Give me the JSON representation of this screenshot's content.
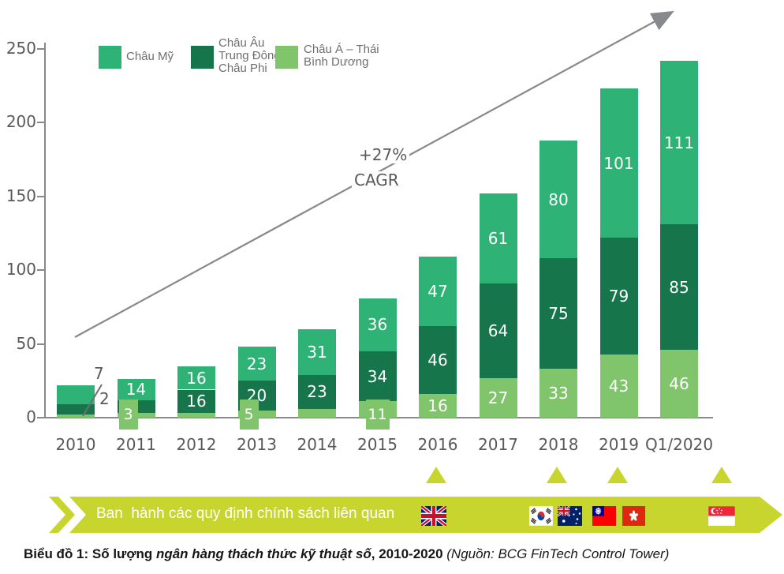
{
  "chart_data": {
    "type": "bar",
    "stacked": true,
    "title": "",
    "categories": [
      "2010",
      "2011",
      "2012",
      "2013",
      "2014",
      "2015",
      "2016",
      "2017",
      "2018",
      "2019",
      "Q1/2020"
    ],
    "series": [
      {
        "name": "Châu Mỹ",
        "color": "#2fb275",
        "values": [
          13,
          14,
          16,
          23,
          31,
          36,
          47,
          61,
          80,
          101,
          111
        ],
        "label_modes": [
          "none",
          "in",
          "in",
          "in",
          "in",
          "in",
          "in",
          "in",
          "in",
          "in",
          "in"
        ]
      },
      {
        "name": "Châu Âu Trung Đông Châu Phi",
        "color": "#17754c",
        "values": [
          7,
          9,
          16,
          20,
          23,
          34,
          46,
          64,
          75,
          79,
          85
        ],
        "label_modes": [
          "callout",
          "none",
          "in",
          "in",
          "in",
          "in",
          "in",
          "in",
          "in",
          "in",
          "in"
        ]
      },
      {
        "name": "Châu Á – Thái Bình Dương",
        "color": "#80c46c",
        "values": [
          2,
          3,
          3,
          5,
          6,
          11,
          16,
          27,
          33,
          43,
          46
        ],
        "label_modes": [
          "callout",
          "chip",
          "none",
          "chip",
          "none",
          "chip",
          "in",
          "in",
          "in",
          "in",
          "in"
        ]
      }
    ],
    "ylim": [
      0,
      250
    ],
    "yticks": [
      0,
      50,
      100,
      150,
      200,
      250
    ],
    "grid": false,
    "legend_position": "top-left",
    "annotation": {
      "growth": "+27%",
      "growth_label": "CAGR"
    }
  },
  "legend": {
    "items": [
      {
        "label": "Châu Mỹ"
      },
      {
        "label": "Châu Âu\nTrung Đông\nChâu Phi"
      },
      {
        "label": "Châu Á – Thái\nBình Dương"
      }
    ]
  },
  "banner": {
    "label": "Ban  hành các quy định chính sách liên quan",
    "color": "#c9d52f",
    "marker_categories": [
      "2016",
      "2018",
      "2019",
      "Q1/2020"
    ],
    "flags": [
      {
        "country": "United Kingdom"
      },
      {
        "country": "South Korea"
      },
      {
        "country": "Australia"
      },
      {
        "country": "Taiwan"
      },
      {
        "country": "Hong Kong"
      },
      {
        "country": "Singapore"
      }
    ]
  },
  "caption": {
    "prefix": "Biểu đồ 1: Số lượng ",
    "italic_title": "ngân hàng thách thức kỹ thuật số",
    "suffix": ", 2010-2020 ",
    "source": "(Nguồn: BCG FinTech Control Tower)"
  },
  "colors": {
    "axis": "#87898c",
    "tick_text": "#58595b",
    "legend_text": "#6d6e71",
    "banner": "#c9d52f"
  }
}
